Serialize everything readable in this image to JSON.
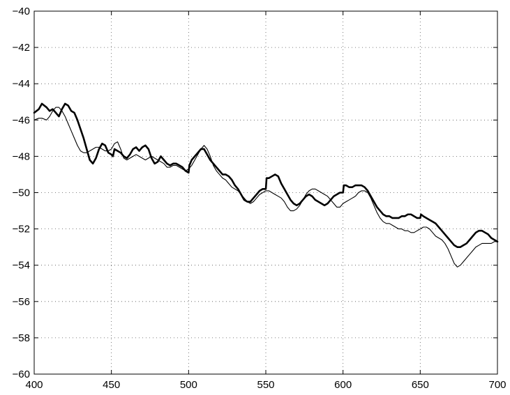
{
  "chart_data": {
    "type": "line",
    "title": "",
    "xlabel": "",
    "ylabel": "",
    "xlim": [
      400,
      700
    ],
    "ylim": [
      -60,
      -40
    ],
    "xticks": [
      400,
      450,
      500,
      550,
      600,
      650,
      700
    ],
    "yticks": [
      -40,
      -42,
      -44,
      -46,
      -48,
      -50,
      -52,
      -54,
      -56,
      -58,
      -60
    ],
    "grid": true,
    "series": [
      {
        "style": "thick",
        "color": "#000000",
        "x": [
          400,
          403,
          405,
          408,
          410,
          412,
          414,
          416,
          418,
          420,
          422,
          424,
          426,
          428,
          430,
          432,
          434,
          436,
          438,
          440,
          442,
          444,
          446,
          448,
          450,
          451,
          452,
          454,
          456,
          458,
          460,
          462,
          464,
          466,
          468,
          470,
          472,
          474,
          476,
          478,
          480,
          482,
          484,
          486,
          488,
          490,
          492,
          494,
          496,
          498,
          500,
          500.5,
          502,
          504,
          506,
          508,
          510,
          512,
          514,
          516,
          518,
          520,
          522,
          524,
          526,
          528,
          530,
          532,
          534,
          536,
          538,
          540,
          542,
          544,
          546,
          548,
          550,
          550.5,
          552,
          554,
          556,
          558,
          560,
          562,
          564,
          566,
          568,
          570,
          572,
          574,
          576,
          578,
          580,
          582,
          584,
          586,
          588,
          590,
          592,
          594,
          596,
          598,
          600,
          600.5,
          602,
          604,
          606,
          608,
          610,
          612,
          614,
          616,
          618,
          620,
          622,
          624,
          626,
          628,
          630,
          632,
          634,
          636,
          638,
          640,
          642,
          644,
          646,
          648,
          650,
          650.5,
          652,
          654,
          656,
          658,
          660,
          662,
          664,
          666,
          668,
          670,
          672,
          674,
          676,
          678,
          680,
          682,
          684,
          686,
          688,
          690,
          692,
          694,
          696,
          698,
          700
        ],
        "y": [
          -45.6,
          -45.4,
          -45.1,
          -45.3,
          -45.5,
          -45.4,
          -45.6,
          -45.8,
          -45.4,
          -45.1,
          -45.2,
          -45.5,
          -45.6,
          -46.0,
          -46.5,
          -47.0,
          -47.6,
          -48.2,
          -48.4,
          -48.1,
          -47.6,
          -47.3,
          -47.4,
          -47.8,
          -47.9,
          -48.0,
          -47.6,
          -47.7,
          -47.8,
          -48.0,
          -48.1,
          -47.9,
          -47.6,
          -47.5,
          -47.7,
          -47.5,
          -47.4,
          -47.6,
          -48.1,
          -48.4,
          -48.3,
          -48.0,
          -48.2,
          -48.4,
          -48.5,
          -48.4,
          -48.4,
          -48.5,
          -48.6,
          -48.8,
          -48.9,
          -48.5,
          -48.2,
          -48.0,
          -47.8,
          -47.6,
          -47.6,
          -47.9,
          -48.2,
          -48.4,
          -48.6,
          -48.8,
          -49.0,
          -49.0,
          -49.1,
          -49.3,
          -49.6,
          -49.8,
          -50.1,
          -50.4,
          -50.5,
          -50.5,
          -50.3,
          -50.1,
          -49.9,
          -49.8,
          -49.8,
          -49.2,
          -49.2,
          -49.1,
          -49.0,
          -49.1,
          -49.5,
          -49.8,
          -50.1,
          -50.4,
          -50.6,
          -50.7,
          -50.6,
          -50.4,
          -50.2,
          -50.1,
          -50.2,
          -50.4,
          -50.5,
          -50.6,
          -50.7,
          -50.6,
          -50.4,
          -50.2,
          -50.1,
          -50.0,
          -50.0,
          -49.6,
          -49.6,
          -49.7,
          -49.7,
          -49.6,
          -49.6,
          -49.6,
          -49.7,
          -49.9,
          -50.2,
          -50.5,
          -50.8,
          -51.0,
          -51.2,
          -51.3,
          -51.3,
          -51.4,
          -51.4,
          -51.4,
          -51.3,
          -51.3,
          -51.2,
          -51.2,
          -51.3,
          -51.4,
          -51.4,
          -51.2,
          -51.3,
          -51.4,
          -51.5,
          -51.6,
          -51.7,
          -51.9,
          -52.1,
          -52.3,
          -52.5,
          -52.7,
          -52.9,
          -53.0,
          -53.0,
          -52.9,
          -52.8,
          -52.6,
          -52.4,
          -52.2,
          -52.1,
          -52.1,
          -52.2,
          -52.3,
          -52.5,
          -52.6,
          -52.7
        ]
      },
      {
        "style": "thin",
        "color": "#000000",
        "x": [
          400,
          403,
          405,
          408,
          410,
          412,
          414,
          416,
          418,
          420,
          422,
          424,
          426,
          428,
          430,
          432,
          434,
          436,
          438,
          440,
          442,
          444,
          446,
          448,
          450,
          452,
          454,
          456,
          458,
          460,
          462,
          464,
          466,
          468,
          470,
          472,
          474,
          476,
          478,
          480,
          482,
          484,
          486,
          488,
          490,
          492,
          494,
          496,
          498,
          500,
          502,
          504,
          506,
          508,
          510,
          512,
          514,
          516,
          518,
          520,
          522,
          524,
          526,
          528,
          530,
          532,
          534,
          536,
          538,
          540,
          542,
          544,
          546,
          548,
          550,
          552,
          554,
          556,
          558,
          560,
          562,
          564,
          566,
          568,
          570,
          572,
          574,
          576,
          578,
          580,
          582,
          584,
          586,
          588,
          590,
          592,
          594,
          596,
          598,
          600,
          602,
          604,
          606,
          608,
          610,
          612,
          614,
          616,
          618,
          620,
          622,
          624,
          626,
          628,
          630,
          632,
          634,
          636,
          638,
          640,
          642,
          644,
          646,
          648,
          650,
          652,
          654,
          656,
          658,
          660,
          662,
          664,
          666,
          668,
          670,
          672,
          674,
          676,
          678,
          680,
          682,
          684,
          686,
          688,
          690,
          692,
          694,
          696,
          698,
          700
        ],
        "y": [
          -46.0,
          -45.9,
          -45.9,
          -46.0,
          -45.8,
          -45.5,
          -45.3,
          -45.3,
          -45.5,
          -45.8,
          -46.2,
          -46.6,
          -47.0,
          -47.4,
          -47.7,
          -47.8,
          -47.8,
          -47.7,
          -47.6,
          -47.5,
          -47.5,
          -47.6,
          -47.7,
          -47.7,
          -47.6,
          -47.3,
          -47.2,
          -47.6,
          -48.1,
          -48.2,
          -48.1,
          -48.0,
          -47.9,
          -48.0,
          -48.1,
          -48.2,
          -48.1,
          -48.0,
          -48.1,
          -48.2,
          -48.3,
          -48.4,
          -48.6,
          -48.6,
          -48.5,
          -48.5,
          -48.6,
          -48.7,
          -48.8,
          -48.7,
          -48.5,
          -48.2,
          -47.9,
          -47.6,
          -47.4,
          -47.6,
          -48.0,
          -48.5,
          -48.8,
          -49.0,
          -49.2,
          -49.3,
          -49.5,
          -49.7,
          -49.8,
          -49.9,
          -50.1,
          -50.3,
          -50.5,
          -50.6,
          -50.5,
          -50.3,
          -50.1,
          -50.0,
          -49.9,
          -49.9,
          -50.0,
          -50.1,
          -50.2,
          -50.3,
          -50.5,
          -50.8,
          -51.0,
          -51.0,
          -50.9,
          -50.7,
          -50.4,
          -50.1,
          -49.9,
          -49.8,
          -49.8,
          -49.9,
          -50.0,
          -50.1,
          -50.2,
          -50.4,
          -50.6,
          -50.8,
          -50.8,
          -50.6,
          -50.5,
          -50.4,
          -50.3,
          -50.2,
          -50.0,
          -49.9,
          -49.9,
          -50.0,
          -50.3,
          -50.7,
          -51.1,
          -51.4,
          -51.6,
          -51.7,
          -51.7,
          -51.8,
          -51.9,
          -52.0,
          -52.0,
          -52.1,
          -52.1,
          -52.2,
          -52.2,
          -52.1,
          -52.0,
          -51.9,
          -51.9,
          -52.0,
          -52.2,
          -52.4,
          -52.5,
          -52.6,
          -52.8,
          -53.1,
          -53.5,
          -53.9,
          -54.1,
          -54.0,
          -53.8,
          -53.6,
          -53.4,
          -53.2,
          -53.0,
          -52.9,
          -52.8,
          -52.8,
          -52.8,
          -52.8,
          -52.7,
          -52.7
        ]
      }
    ]
  }
}
